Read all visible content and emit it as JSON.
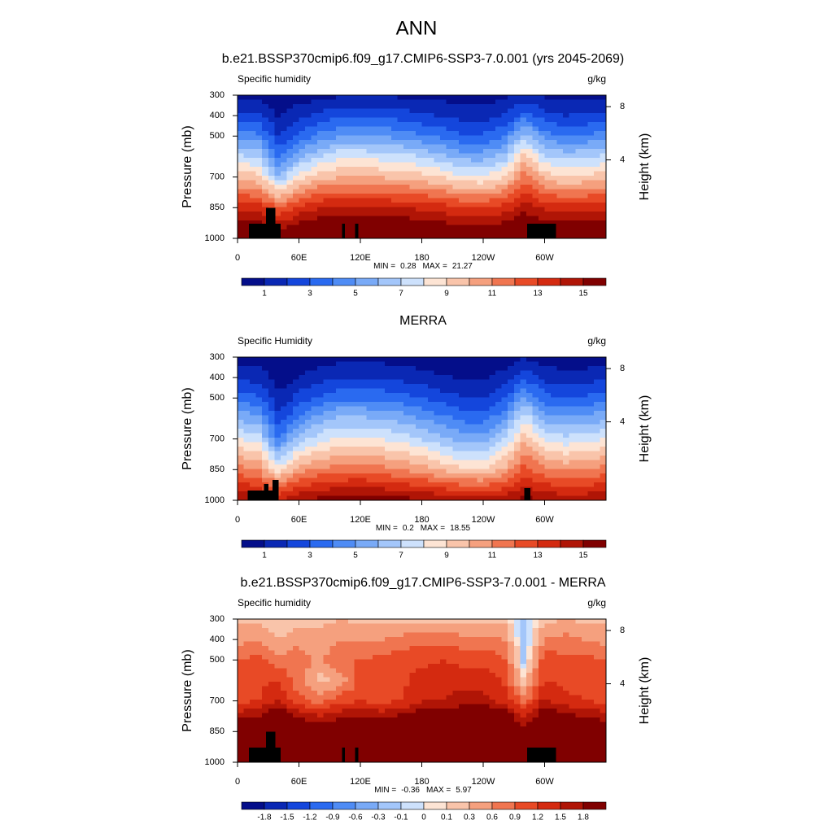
{
  "page_title": "ANN",
  "chart_data": [
    {
      "type": "contour",
      "title": "b.e21.BSSP370cmip6.f09_g17.CMIP6-SSP3-7.0.001 (yrs 2045-2069)",
      "left_title": "Specific humidity",
      "right_title": "g/kg",
      "ylabel": "Pressure (mb)",
      "y2label": "Height (km)",
      "x": [
        0,
        20,
        40,
        60,
        80,
        100,
        120,
        140,
        160,
        180,
        200,
        220,
        240,
        260,
        280,
        300,
        320,
        340,
        360
      ],
      "y": [
        300,
        400,
        500,
        600,
        700,
        850,
        1000
      ],
      "z": [
        [
          0.7,
          2.4,
          4.5,
          7.2,
          9.6,
          13.8,
          17.0
        ],
        [
          0.7,
          2.3,
          4.4,
          7.0,
          9.4,
          13.5,
          16.8
        ],
        [
          0.3,
          0.9,
          2.0,
          3.8,
          6.2,
          12.0,
          16.0
        ],
        [
          0.5,
          1.6,
          3.3,
          5.8,
          8.5,
          13.2,
          16.8
        ],
        [
          0.6,
          2.2,
          4.3,
          7.0,
          9.6,
          14.0,
          17.2
        ],
        [
          0.9,
          2.8,
          5.0,
          7.8,
          10.0,
          14.2,
          17.4
        ],
        [
          0.9,
          2.8,
          5.0,
          7.8,
          10.0,
          14.2,
          17.4
        ],
        [
          0.9,
          2.7,
          4.9,
          7.6,
          9.9,
          14.0,
          17.2
        ],
        [
          0.8,
          2.5,
          4.6,
          7.3,
          9.7,
          14.0,
          17.2
        ],
        [
          0.7,
          2.2,
          4.2,
          7.0,
          9.4,
          13.8,
          17.0
        ],
        [
          0.6,
          1.9,
          3.7,
          6.3,
          8.9,
          13.5,
          16.8
        ],
        [
          0.5,
          1.6,
          3.2,
          5.6,
          8.2,
          13.0,
          16.6
        ],
        [
          0.5,
          1.6,
          3.2,
          5.5,
          8.1,
          13.0,
          16.6
        ],
        [
          0.7,
          2.0,
          3.9,
          6.4,
          8.9,
          13.4,
          16.8
        ],
        [
          1.2,
          3.5,
          6.5,
          9.5,
          11.5,
          14.5,
          17.5
        ],
        [
          0.8,
          2.4,
          4.5,
          7.2,
          9.6,
          13.8,
          17.0
        ],
        [
          0.6,
          2.0,
          4.0,
          6.6,
          9.1,
          13.5,
          16.8
        ],
        [
          0.6,
          2.1,
          4.1,
          6.8,
          9.3,
          13.6,
          16.9
        ],
        [
          0.7,
          2.4,
          4.5,
          7.2,
          9.6,
          13.8,
          17.0
        ]
      ],
      "masks": [
        [
          11,
          42,
          928
        ],
        [
          28,
          37,
          850
        ],
        [
          102,
          105,
          928
        ],
        [
          115,
          118,
          928
        ],
        [
          283,
          311,
          928
        ]
      ],
      "xlim": [
        0,
        360
      ],
      "xticks": [
        0,
        {
          "value": 60,
          "label": "60E"
        },
        {
          "value": 120,
          "label": "120E"
        },
        180,
        {
          "value": 240,
          "label": "120W"
        },
        {
          "value": 300,
          "label": "60W"
        }
      ],
      "ylim": [
        1000,
        300
      ],
      "yticks": [
        300,
        400,
        500,
        700,
        850,
        1000
      ],
      "y2ticks": [
        4,
        8
      ],
      "levels": [
        1,
        2,
        3,
        4,
        5,
        6,
        7,
        8,
        9,
        10,
        11,
        12,
        13,
        14,
        15
      ],
      "cbticks": [
        1,
        3,
        5,
        7,
        9,
        11,
        13,
        15
      ],
      "colors": [
        "#040e8a",
        "#0a28b4",
        "#1446dc",
        "#2a6af0",
        "#4f8cf5",
        "#79aaf7",
        "#a3c6fa",
        "#cde1fc",
        "#fde4d4",
        "#f9c4aa",
        "#f5a07e",
        "#f07550",
        "#e84a26",
        "#d42a10",
        "#b01506",
        "#800000"
      ],
      "min_label": "MIN =",
      "min": 0.28,
      "max_label": "MAX =",
      "max": 21.27
    },
    {
      "type": "contour",
      "title": "MERRA",
      "left_title": "Specific Humidity",
      "right_title": "g/kg",
      "ylabel": "Pressure (mb)",
      "y2label": "Height (km)",
      "x": [
        0,
        20,
        40,
        60,
        80,
        100,
        120,
        140,
        160,
        180,
        200,
        220,
        240,
        260,
        280,
        300,
        320,
        340,
        360
      ],
      "y": [
        300,
        400,
        500,
        600,
        700,
        850,
        1000
      ],
      "z": [
        [
          0.5,
          1.8,
          3.5,
          5.8,
          8.0,
          11.5,
          15.0
        ],
        [
          0.5,
          1.6,
          3.2,
          5.4,
          7.6,
          11.0,
          14.8
        ],
        [
          0.2,
          0.5,
          1.2,
          2.4,
          4.0,
          8.5,
          14.0
        ],
        [
          0.3,
          1.0,
          2.4,
          4.2,
          6.5,
          10.5,
          15.0
        ],
        [
          0.4,
          1.5,
          3.2,
          5.5,
          7.6,
          11.2,
          15.4
        ],
        [
          0.6,
          2.0,
          3.8,
          6.2,
          8.2,
          11.5,
          15.8
        ],
        [
          0.6,
          2.0,
          3.8,
          6.2,
          8.2,
          11.6,
          15.8
        ],
        [
          0.6,
          1.9,
          3.7,
          6.0,
          8.0,
          11.4,
          15.6
        ],
        [
          0.5,
          1.7,
          3.4,
          5.6,
          7.6,
          11.0,
          15.4
        ],
        [
          0.4,
          1.4,
          3.0,
          5.0,
          7.0,
          10.5,
          15.2
        ],
        [
          0.3,
          1.1,
          2.5,
          4.3,
          6.2,
          9.8,
          15.0
        ],
        [
          0.3,
          0.9,
          2.1,
          3.7,
          5.5,
          9.2,
          14.8
        ],
        [
          0.3,
          0.9,
          2.0,
          3.6,
          5.4,
          9.0,
          14.6
        ],
        [
          0.4,
          1.3,
          2.8,
          4.8,
          6.8,
          10.2,
          14.8
        ],
        [
          0.9,
          2.8,
          5.2,
          7.8,
          9.8,
          12.5,
          15.5
        ],
        [
          0.5,
          1.7,
          3.4,
          5.6,
          7.8,
          11.2,
          15.0
        ],
        [
          0.4,
          1.4,
          3.0,
          5.2,
          7.3,
          10.8,
          14.8
        ],
        [
          0.4,
          1.5,
          3.2,
          5.4,
          7.6,
          11.0,
          14.8
        ],
        [
          0.5,
          1.8,
          3.5,
          5.8,
          8.0,
          11.5,
          15.0
        ]
      ],
      "masks": [
        [
          10,
          40,
          952
        ],
        [
          26,
          30,
          920
        ],
        [
          34,
          40,
          900
        ],
        [
          280,
          286,
          940
        ]
      ],
      "xlim": [
        0,
        360
      ],
      "xticks": [
        0,
        {
          "value": 60,
          "label": "60E"
        },
        {
          "value": 120,
          "label": "120E"
        },
        180,
        {
          "value": 240,
          "label": "120W"
        },
        {
          "value": 300,
          "label": "60W"
        }
      ],
      "ylim": [
        1000,
        300
      ],
      "yticks": [
        300,
        400,
        500,
        700,
        850,
        1000
      ],
      "y2ticks": [
        4,
        8
      ],
      "levels": [
        1,
        2,
        3,
        4,
        5,
        6,
        7,
        8,
        9,
        10,
        11,
        12,
        13,
        14,
        15
      ],
      "cbticks": [
        1,
        3,
        5,
        7,
        9,
        11,
        13,
        15
      ],
      "colors": [
        "#040e8a",
        "#0a28b4",
        "#1446dc",
        "#2a6af0",
        "#4f8cf5",
        "#79aaf7",
        "#a3c6fa",
        "#cde1fc",
        "#fde4d4",
        "#f9c4aa",
        "#f5a07e",
        "#f07550",
        "#e84a26",
        "#d42a10",
        "#b01506",
        "#800000"
      ],
      "min_label": "MIN =",
      "min": 0.2,
      "max_label": "MAX =",
      "max": 18.55
    },
    {
      "type": "contour",
      "title": "b.e21.BSSP370cmip6.f09_g17.CMIP6-SSP3-7.0.001 - MERRA",
      "left_title": "Specific humidity",
      "right_title": "g/kg",
      "ylabel": "Pressure (mb)",
      "y2label": "Height (km)",
      "x": [
        0,
        20,
        40,
        60,
        80,
        100,
        120,
        140,
        160,
        180,
        200,
        220,
        240,
        260,
        280,
        300,
        320,
        340,
        360
      ],
      "y": [
        300,
        400,
        500,
        600,
        700,
        850,
        1000
      ],
      "z": [
        [
          0.2,
          0.5,
          0.9,
          1.0,
          1.1,
          2.2,
          2.5
        ],
        [
          0.2,
          0.6,
          1.0,
          1.1,
          1.2,
          2.4,
          2.4
        ],
        [
          0.1,
          0.3,
          0.7,
          1.2,
          1.5,
          3.0,
          2.2
        ],
        [
          0.2,
          0.5,
          0.8,
          0.7,
          1.0,
          2.4,
          2.2
        ],
        [
          0.2,
          0.4,
          0.5,
          0.2,
          0.8,
          2.2,
          2.0
        ],
        [
          0.3,
          0.6,
          0.9,
          0.4,
          1.1,
          2.3,
          2.0
        ],
        [
          0.2,
          0.6,
          0.9,
          1.0,
          1.2,
          2.4,
          2.0
        ],
        [
          0.2,
          0.6,
          1.0,
          1.0,
          1.1,
          2.3,
          2.0
        ],
        [
          0.2,
          0.7,
          1.1,
          1.1,
          1.2,
          2.5,
          2.0
        ],
        [
          0.2,
          0.8,
          1.1,
          1.4,
          1.5,
          2.6,
          2.1
        ],
        [
          0.2,
          0.8,
          1.2,
          1.4,
          1.5,
          2.7,
          2.1
        ],
        [
          0.2,
          0.7,
          1.1,
          1.4,
          1.6,
          2.9,
          2.1
        ],
        [
          0.2,
          0.7,
          1.1,
          1.4,
          1.6,
          3.0,
          2.2
        ],
        [
          0.2,
          0.6,
          1.0,
          1.2,
          1.4,
          2.8,
          2.2
        ],
        [
          -0.2,
          -0.3,
          -0.2,
          0.1,
          0.8,
          2.0,
          2.0
        ],
        [
          0.2,
          0.6,
          1.1,
          1.2,
          1.6,
          2.6,
          2.2
        ],
        [
          0.3,
          0.7,
          1.0,
          1.1,
          1.3,
          2.5,
          2.0
        ],
        [
          0.2,
          0.6,
          1.0,
          1.0,
          1.2,
          2.3,
          2.1
        ],
        [
          0.2,
          0.5,
          0.9,
          1.0,
          1.1,
          2.2,
          2.5
        ]
      ],
      "masks": [
        [
          11,
          42,
          928
        ],
        [
          28,
          37,
          850
        ],
        [
          102,
          105,
          928
        ],
        [
          115,
          118,
          928
        ],
        [
          283,
          311,
          928
        ]
      ],
      "xlim": [
        0,
        360
      ],
      "xticks": [
        0,
        {
          "value": 60,
          "label": "60E"
        },
        {
          "value": 120,
          "label": "120E"
        },
        180,
        {
          "value": 240,
          "label": "120W"
        },
        {
          "value": 300,
          "label": "60W"
        }
      ],
      "ylim": [
        1000,
        300
      ],
      "yticks": [
        300,
        400,
        500,
        700,
        850,
        1000
      ],
      "y2ticks": [
        4,
        8
      ],
      "levels": [
        -1.8,
        -1.5,
        -1.2,
        -0.9,
        -0.6,
        -0.3,
        -0.1,
        0,
        0.1,
        0.3,
        0.6,
        0.9,
        1.2,
        1.5,
        1.8
      ],
      "cbticks": [
        -1.8,
        -1.5,
        -1.2,
        -0.9,
        -0.6,
        -0.3,
        -0.1,
        0,
        0.1,
        0.3,
        0.6,
        0.9,
        1.2,
        1.5,
        1.8
      ],
      "colors": [
        "#040e8a",
        "#0a28b4",
        "#1446dc",
        "#2a6af0",
        "#4f8cf5",
        "#79aaf7",
        "#a3c6fa",
        "#cde1fc",
        "#fde4d4",
        "#f9c4aa",
        "#f5a07e",
        "#f07550",
        "#e84a26",
        "#d42a10",
        "#b01506",
        "#800000"
      ],
      "min_label": "MIN =",
      "min": -0.36,
      "max_label": "MAX =",
      "max": 5.97
    }
  ]
}
